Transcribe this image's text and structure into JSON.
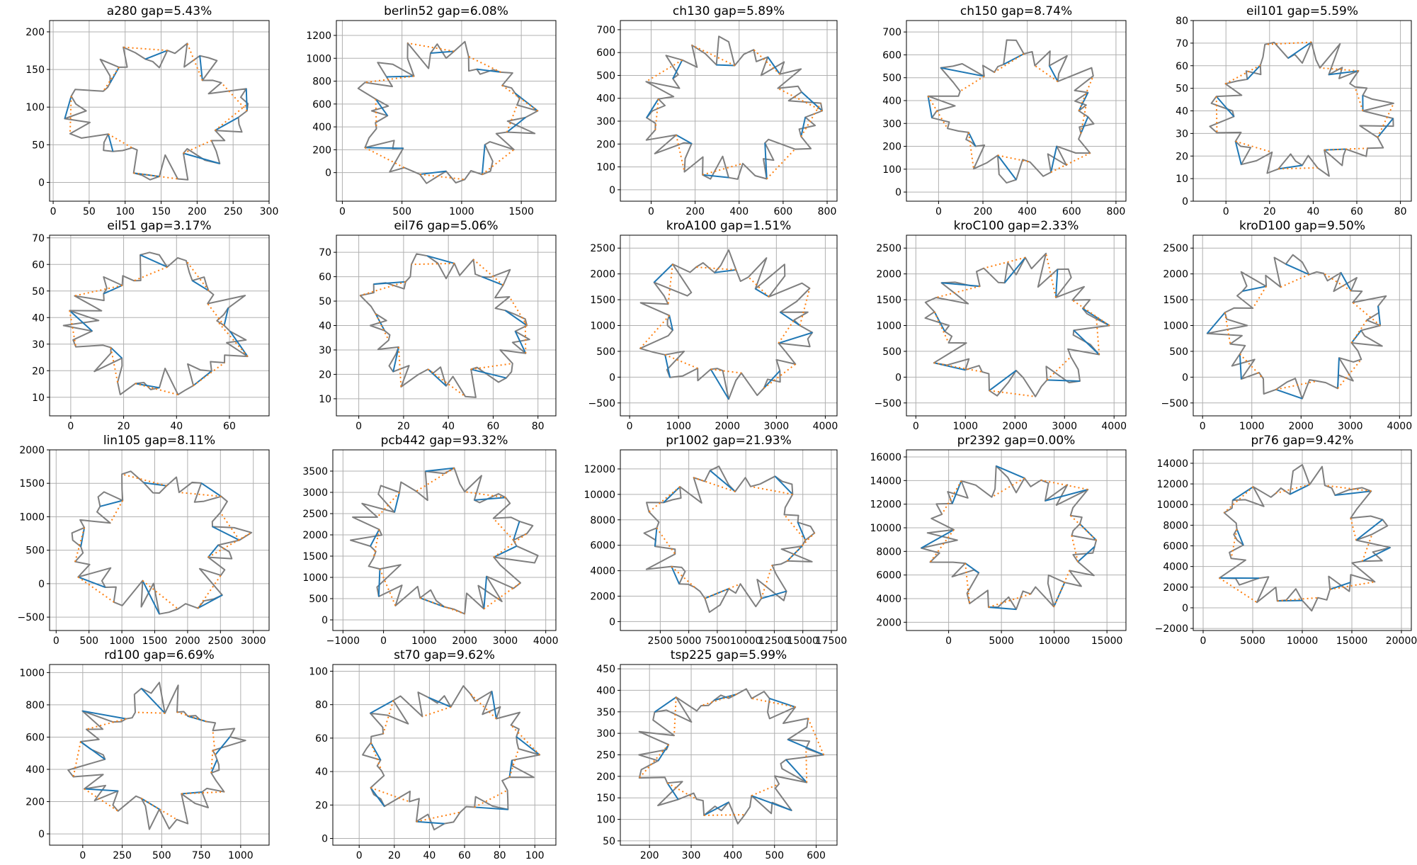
{
  "colors": {
    "tour_a": "#1f77b4",
    "tour_b": "#ff7f0e",
    "shared_edge": "#7f7f7f",
    "grid": "#b0b0b0"
  },
  "chart_data": [
    {
      "type": "line",
      "title": "a280 gap=5.43%",
      "xlim": [
        -5,
        300
      ],
      "ylim": [
        -25,
        215
      ],
      "xticks": [
        0,
        50,
        100,
        150,
        200,
        250,
        300
      ],
      "yticks": [
        0,
        50,
        100,
        150,
        200
      ]
    },
    {
      "type": "line",
      "title": "berlin52 gap=6.08%",
      "xlim": [
        -50,
        1790
      ],
      "ylim": [
        -250,
        1330
      ],
      "xticks": [
        0,
        500,
        1000,
        1500
      ],
      "yticks": [
        0,
        200,
        400,
        600,
        800,
        1000,
        1200
      ]
    },
    {
      "type": "line",
      "title": "ch130 gap=5.89%",
      "xlim": [
        -140,
        845
      ],
      "ylim": [
        -50,
        740
      ],
      "xticks": [
        0,
        200,
        400,
        600,
        800
      ],
      "yticks": [
        0,
        100,
        200,
        300,
        400,
        500,
        600,
        700
      ]
    },
    {
      "type": "line",
      "title": "ch150 gap=8.74%",
      "xlim": [
        -145,
        845
      ],
      "ylim": [
        -40,
        750
      ],
      "xticks": [
        0,
        200,
        400,
        600,
        800
      ],
      "yticks": [
        0,
        100,
        200,
        300,
        400,
        500,
        600,
        700
      ]
    },
    {
      "type": "line",
      "title": "eil101 gap=5.59%",
      "xlim": [
        -15,
        85
      ],
      "ylim": [
        0,
        80
      ],
      "xticks": [
        0,
        20,
        40,
        60,
        80
      ],
      "yticks": [
        0,
        10,
        20,
        30,
        40,
        50,
        60,
        70,
        80
      ]
    },
    {
      "type": "line",
      "title": "eil51 gap=3.17%",
      "xlim": [
        -8,
        75
      ],
      "ylim": [
        3,
        71
      ],
      "xticks": [
        0,
        20,
        40,
        60
      ],
      "yticks": [
        10,
        20,
        30,
        40,
        50,
        60,
        70
      ]
    },
    {
      "type": "line",
      "title": "eil76 gap=5.06%",
      "xlim": [
        -10,
        88
      ],
      "ylim": [
        3,
        77
      ],
      "xticks": [
        0,
        20,
        40,
        60,
        80
      ],
      "yticks": [
        10,
        20,
        30,
        40,
        50,
        60,
        70
      ]
    },
    {
      "type": "line",
      "title": "kroA100 gap=1.51%",
      "xlim": [
        -190,
        4240
      ],
      "ylim": [
        -750,
        2750
      ],
      "xticks": [
        0,
        1000,
        2000,
        3000,
        4000
      ],
      "yticks": [
        -500,
        0,
        500,
        1000,
        1500,
        2000,
        2500
      ]
    },
    {
      "type": "line",
      "title": "kroC100 gap=2.33%",
      "xlim": [
        -190,
        4240
      ],
      "ylim": [
        -750,
        2750
      ],
      "xticks": [
        0,
        1000,
        2000,
        3000,
        4000
      ],
      "yticks": [
        -500,
        0,
        500,
        1000,
        1500,
        2000,
        2500
      ]
    },
    {
      "type": "line",
      "title": "kroD100 gap=9.50%",
      "xlim": [
        -190,
        4240
      ],
      "ylim": [
        -750,
        2750
      ],
      "xticks": [
        0,
        1000,
        2000,
        3000,
        4000
      ],
      "yticks": [
        -500,
        0,
        500,
        1000,
        1500,
        2000,
        2500
      ]
    },
    {
      "type": "line",
      "title": "lin105 gap=8.11%",
      "xlim": [
        -100,
        3240
      ],
      "ylim": [
        -700,
        2000
      ],
      "xticks": [
        0,
        500,
        1000,
        1500,
        2000,
        2500,
        3000
      ],
      "yticks": [
        -500,
        0,
        500,
        1000,
        1500,
        2000
      ]
    },
    {
      "type": "line",
      "title": "pcb442 gap=93.32%",
      "xlim": [
        -1250,
        4250
      ],
      "ylim": [
        -250,
        4000
      ],
      "xticks": [
        -1000,
        0,
        1000,
        2000,
        3000,
        4000
      ],
      "yticks": [
        0,
        500,
        1000,
        1500,
        2000,
        2500,
        3000,
        3500
      ]
    },
    {
      "type": "line",
      "title": "pr1002 gap=21.93%",
      "xlim": [
        -1000,
        18000
      ],
      "ylim": [
        -700,
        13500
      ],
      "xticks": [
        2500,
        5000,
        7500,
        10000,
        12500,
        15000,
        17500
      ],
      "yticks": [
        0,
        2000,
        4000,
        6000,
        8000,
        10000,
        12000
      ]
    },
    {
      "type": "line",
      "title": "pr2392 gap=0.00%",
      "xlim": [
        -4000,
        16800
      ],
      "ylim": [
        1300,
        16600
      ],
      "xticks": [
        0,
        5000,
        10000,
        15000
      ],
      "yticks": [
        2000,
        4000,
        6000,
        8000,
        10000,
        12000,
        14000,
        16000
      ]
    },
    {
      "type": "line",
      "title": "pr76 gap=9.42%",
      "xlim": [
        -1000,
        21000
      ],
      "ylim": [
        -2200,
        15300
      ],
      "xticks": [
        0,
        5000,
        10000,
        15000,
        20000
      ],
      "yticks": [
        -2000,
        0,
        2000,
        4000,
        6000,
        8000,
        10000,
        12000,
        14000
      ]
    },
    {
      "type": "line",
      "title": "rd100 gap=6.69%",
      "xlim": [
        -210,
        1180
      ],
      "ylim": [
        -70,
        1050
      ],
      "xticks": [
        0,
        250,
        500,
        750,
        1000
      ],
      "yticks": [
        0,
        200,
        400,
        600,
        800,
        1000
      ]
    },
    {
      "type": "line",
      "title": "st70 gap=9.62%",
      "xlim": [
        -15,
        112
      ],
      "ylim": [
        -4,
        104
      ],
      "xticks": [
        0,
        20,
        40,
        60,
        80,
        100
      ],
      "yticks": [
        0,
        20,
        40,
        60,
        80,
        100
      ]
    },
    {
      "type": "line",
      "title": "tsp225 gap=5.99%",
      "xlim": [
        130,
        650
      ],
      "ylim": [
        40,
        460
      ],
      "xticks": [
        200,
        300,
        400,
        500,
        600
      ],
      "yticks": [
        50,
        100,
        150,
        200,
        250,
        300,
        350,
        400,
        450
      ]
    }
  ]
}
